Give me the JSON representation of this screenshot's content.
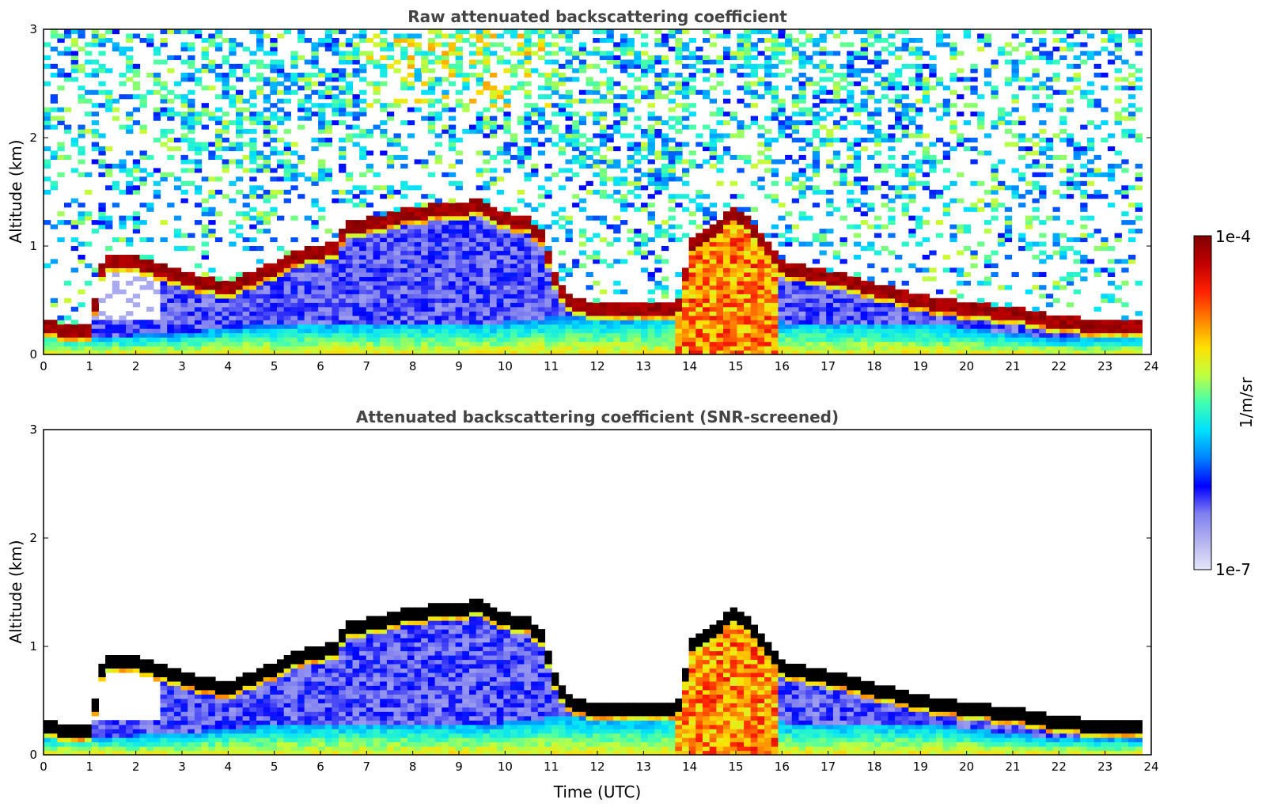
{
  "chart_data": [
    {
      "type": "heatmap",
      "title": "Raw attenuated backscattering coefficient",
      "xlabel": "",
      "ylabel": "Altitude (km)",
      "xlim": [
        0,
        24
      ],
      "ylim": [
        0,
        3
      ],
      "xticks": [
        0,
        1,
        2,
        3,
        4,
        5,
        6,
        7,
        8,
        9,
        10,
        11,
        12,
        13,
        14,
        15,
        16,
        17,
        18,
        19,
        20,
        21,
        22,
        23,
        24
      ],
      "yticks": [
        0,
        1,
        2,
        3
      ],
      "data_extent_x": [
        0,
        23.8
      ],
      "noise": "high",
      "cloud_base_km": {
        "t": [
          0,
          1,
          2,
          3,
          4,
          5,
          6,
          6.5,
          7,
          8,
          9,
          10,
          11,
          12,
          13,
          13.8,
          14.5,
          15,
          16,
          17,
          18,
          19,
          20,
          21,
          22,
          23,
          23.8
        ],
        "z": [
          0.2,
          0.18,
          0.18,
          0.2,
          0.25,
          0.28,
          0.3,
          0.3,
          0.3,
          0.3,
          0.3,
          0.3,
          0.35,
          0.35,
          0.35,
          0.4,
          0.4,
          0.4,
          0.3,
          0.3,
          0.3,
          0.3,
          0.25,
          0.2,
          0.15,
          0.15,
          0.15
        ]
      },
      "layer_top_km": {
        "t": [
          0,
          1,
          1.3,
          2,
          3,
          3.5,
          4,
          4.5,
          5,
          5.5,
          6,
          6.4,
          6.5,
          7,
          8,
          9,
          9.5,
          10,
          10.5,
          10.8,
          11,
          11.3,
          12,
          13,
          13.8,
          14,
          14.5,
          15,
          15.5,
          16,
          17,
          18,
          19,
          20,
          21,
          22,
          23,
          23.8
        ],
        "z": [
          0.25,
          0.22,
          0.85,
          0.85,
          0.72,
          0.65,
          0.62,
          0.7,
          0.8,
          0.9,
          0.95,
          1.0,
          1.15,
          1.2,
          1.3,
          1.35,
          1.38,
          1.25,
          1.2,
          1.1,
          0.8,
          0.5,
          0.4,
          0.4,
          0.45,
          1.0,
          1.15,
          1.3,
          1.1,
          0.8,
          0.72,
          0.6,
          0.5,
          0.42,
          0.38,
          0.3,
          0.25,
          0.25
        ]
      }
    },
    {
      "type": "heatmap",
      "title": "Attenuated backscattering coefficient (SNR-screened)",
      "xlabel": "Time (UTC)",
      "ylabel": "Altitude (km)",
      "xlim": [
        0,
        24
      ],
      "ylim": [
        0,
        3
      ],
      "xticks": [
        0,
        1,
        2,
        3,
        4,
        5,
        6,
        7,
        8,
        9,
        10,
        11,
        12,
        13,
        14,
        15,
        16,
        17,
        18,
        19,
        20,
        21,
        22,
        23,
        24
      ],
      "yticks": [
        0,
        1,
        2,
        3
      ],
      "data_extent_x": [
        0,
        23.8
      ],
      "noise": "screened"
    }
  ],
  "colorbar": {
    "label": "1/m/sr",
    "min_label": "1e-7",
    "max_label": "1e-4",
    "colormap": [
      "#e6e6fa",
      "#b4b4f0",
      "#8080f0",
      "#0000ff",
      "#0080ff",
      "#00e0ff",
      "#40ffb0",
      "#c0ff40",
      "#ffe000",
      "#ff8000",
      "#ff2000",
      "#c00000",
      "#800000"
    ]
  }
}
